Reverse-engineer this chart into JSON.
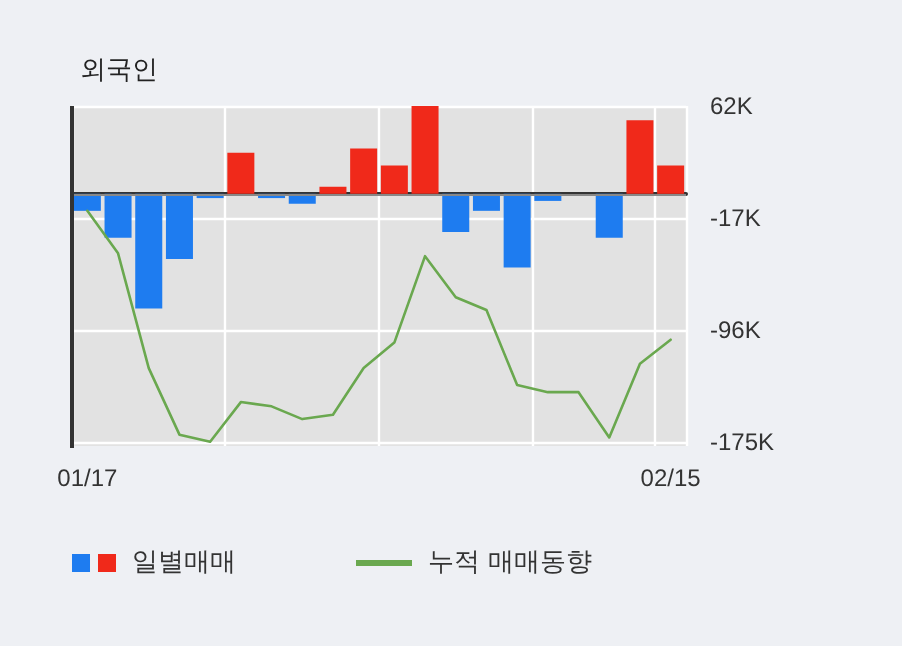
{
  "chart_data": {
    "type": "bar",
    "title": "외국인",
    "categories": [
      "01/17",
      null,
      null,
      null,
      null,
      null,
      null,
      null,
      null,
      null,
      null,
      null,
      null,
      null,
      null,
      null,
      null,
      null,
      null,
      "02/15"
    ],
    "series": [
      {
        "name": "일별매매",
        "colors": [
          "#1e7cf0",
          "#1e7cf0",
          "#1e7cf0",
          "#1e7cf0",
          "#1e7cf0",
          "#f0291a",
          "#1e7cf0",
          "#1e7cf0",
          "#f0291a",
          "#f0291a",
          "#f0291a",
          "#f0291a",
          "#1e7cf0",
          "#1e7cf0",
          "#1e7cf0",
          "#1e7cf0",
          "#1e7cf0",
          "#1e7cf0",
          "#f0291a",
          "#f0291a"
        ],
        "values": [
          -12,
          -31,
          -81,
          -46,
          -3,
          29,
          -3,
          -7,
          5,
          32,
          20,
          62,
          -27,
          -12,
          -52,
          -5,
          0,
          -31,
          52,
          20
        ]
      },
      {
        "type": "line",
        "name": "누적 매매동향",
        "color": "#6aa84f",
        "values": [
          -12,
          -42,
          -123,
          -170,
          -175,
          -147,
          -150,
          -159,
          -156,
          -123,
          -105,
          -44,
          -73,
          -82,
          -135,
          -140,
          -140,
          -172,
          -120,
          -103
        ]
      }
    ],
    "ylim": [
      -178,
      62
    ],
    "yticks": [
      {
        "value": 62,
        "label": "62K"
      },
      {
        "value": -17,
        "label": "-17K"
      },
      {
        "value": -96,
        "label": "-96K"
      },
      {
        "value": -175,
        "label": "-175K"
      }
    ],
    "ref_lines": [
      {
        "axis": "y",
        "value": 0,
        "color": "#888888"
      }
    ],
    "grid": true,
    "legend": "bottom",
    "marker": "none"
  }
}
